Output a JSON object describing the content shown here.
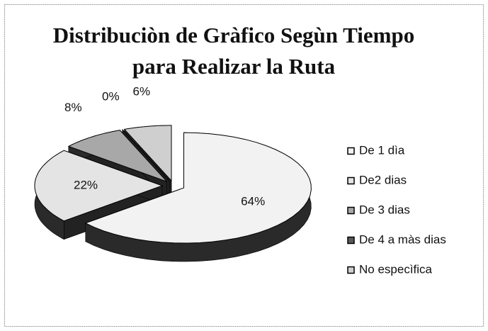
{
  "chart_data": {
    "type": "pie3d",
    "title": "Distribuciòn de Gràfico Segùn Tiempo para Realizar la Ruta",
    "categories": [
      "De 1 dìa",
      "De2 dias",
      "De 3 dias",
      "De 4 a màs dias",
      "No especìfica"
    ],
    "values": [
      64,
      22,
      8,
      0,
      6
    ],
    "value_labels": [
      "64%",
      "22%",
      "8%",
      "0%",
      "6%"
    ],
    "colors": [
      "#f2f2f2",
      "#e4e4e4",
      "#a8a8a8",
      "#5a5a5a",
      "#cfcfcf"
    ],
    "legend": "right"
  }
}
